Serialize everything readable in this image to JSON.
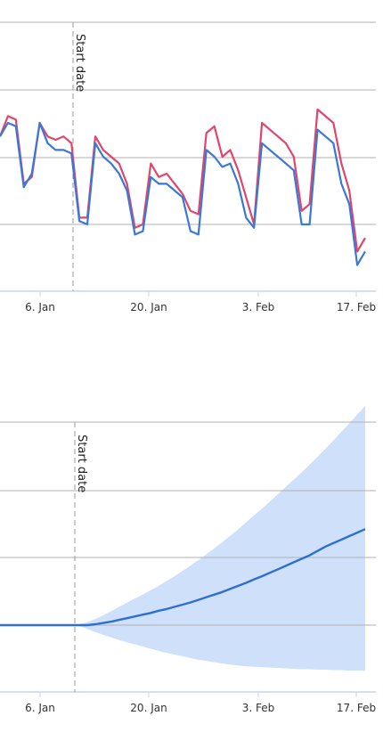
{
  "chart_data": [
    {
      "type": "line",
      "title": "",
      "x_ticks": [
        "6. Jan",
        "20. Jan",
        "3. Feb",
        "17. Feb"
      ],
      "annotation": "Start date",
      "grid": true,
      "series": [
        {
          "color": "#e0456b",
          "values": [
            3.3,
            3.6,
            3.55,
            2.6,
            2.7,
            3.5,
            3.3,
            3.25,
            3.3,
            3.2,
            2.1,
            2.1,
            3.3,
            3.1,
            3.0,
            2.9,
            2.6,
            1.95,
            2.0,
            2.9,
            2.7,
            2.75,
            2.6,
            2.45,
            2.2,
            2.15,
            3.35,
            3.45,
            3.0,
            3.1,
            2.8,
            2.4,
            2.0,
            3.5,
            3.4,
            3.3,
            3.2,
            3.0,
            2.2,
            2.3,
            3.7,
            3.6,
            3.5,
            2.9,
            2.5,
            1.6,
            1.8
          ]
        },
        {
          "color": "#3a78d8",
          "values": [
            3.3,
            3.5,
            3.45,
            2.55,
            2.75,
            3.5,
            3.2,
            3.1,
            3.1,
            3.05,
            2.05,
            2.0,
            3.2,
            3.0,
            2.9,
            2.75,
            2.5,
            1.85,
            1.9,
            2.7,
            2.6,
            2.6,
            2.5,
            2.4,
            1.9,
            1.85,
            3.1,
            3.0,
            2.85,
            2.9,
            2.6,
            2.1,
            1.95,
            3.2,
            3.1,
            3.0,
            2.9,
            2.8,
            2.0,
            2.0,
            3.4,
            3.3,
            3.2,
            2.6,
            2.3,
            1.4,
            1.6
          ]
        }
      ]
    },
    {
      "type": "area",
      "title": "",
      "x_ticks": [
        "6. Jan",
        "20. Jan",
        "3. Feb",
        "17. Feb"
      ],
      "annotation": "Start date",
      "grid": true,
      "series": [
        {
          "color": "#2f6fd0",
          "values": [
            0,
            0,
            0,
            0,
            0,
            0,
            0,
            0,
            0,
            0,
            0,
            0,
            0.02,
            0.05,
            0.08,
            0.12,
            0.16,
            0.2,
            0.24,
            0.28,
            0.33,
            0.37,
            0.42,
            0.47,
            0.52,
            0.58,
            0.64,
            0.7,
            0.76,
            0.83,
            0.9,
            0.97,
            1.05,
            1.12,
            1.2,
            1.28,
            1.36,
            1.44,
            1.52,
            1.6,
            1.7,
            1.8,
            1.88,
            1.96,
            2.04,
            2.12,
            2.2
          ]
        }
      ],
      "band": {
        "color": "#cfe0fa",
        "upper": [
          0,
          0.04,
          0.1,
          0.18,
          0.27,
          0.37,
          0.47,
          0.57,
          0.66,
          0.76,
          0.86,
          0.97,
          1.08,
          1.2,
          1.32,
          1.45,
          1.58,
          1.72,
          1.86,
          2.01,
          2.16,
          2.32,
          2.48,
          2.64,
          2.8,
          2.97,
          3.14,
          3.31,
          3.48,
          3.66,
          3.84,
          4.03,
          4.22,
          4.42,
          4.62,
          4.82,
          5.03
        ],
        "lower": [
          0,
          -0.05,
          -0.12,
          -0.19,
          -0.25,
          -0.31,
          -0.37,
          -0.42,
          -0.47,
          -0.52,
          -0.57,
          -0.62,
          -0.66,
          -0.7,
          -0.74,
          -0.78,
          -0.81,
          -0.84,
          -0.87,
          -0.9,
          -0.92,
          -0.94,
          -0.95,
          -0.96,
          -0.97,
          -0.98,
          -0.99,
          -1.0,
          -1.01,
          -1.01,
          -1.02,
          -1.02,
          -1.03,
          -1.03,
          -1.04,
          -1.04,
          -1.05
        ]
      }
    }
  ]
}
